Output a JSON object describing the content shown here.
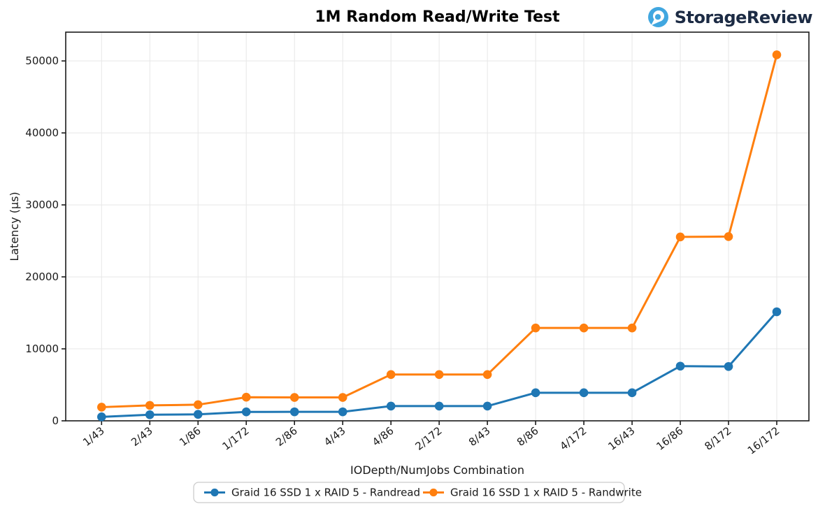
{
  "header": {
    "title": "1M Random Read/Write Test",
    "logo_text": "StorageReview",
    "logo_icon_color": "#41a7e0",
    "logo_text_color": "#1c2b44"
  },
  "chart_data": {
    "type": "line",
    "title": "1M Random Read/Write Test",
    "xlabel": "IODepth/NumJobs Combination",
    "ylabel": "Latency (µs)",
    "ylim": [
      0,
      54000
    ],
    "yticks": [
      0,
      10000,
      20000,
      30000,
      40000,
      50000
    ],
    "grid": true,
    "legend_position": "bottom-center",
    "categories": [
      "1/43",
      "2/43",
      "1/86",
      "1/172",
      "2/86",
      "4/43",
      "4/86",
      "2/172",
      "8/43",
      "8/86",
      "4/172",
      "16/43",
      "16/86",
      "8/172",
      "16/172"
    ],
    "series": [
      {
        "name": "Graid 16 SSD 1 x RAID 5 - Randread",
        "color": "#1f77b4",
        "values": [
          550,
          850,
          900,
          1240,
          1250,
          1250,
          2050,
          2050,
          2050,
          3900,
          3900,
          3900,
          7600,
          7550,
          15150
        ]
      },
      {
        "name": "Graid 16 SSD 1 x RAID 5 - Randwrite",
        "color": "#ff7f0e",
        "values": [
          1900,
          2150,
          2240,
          3280,
          3250,
          3250,
          6430,
          6430,
          6430,
          12900,
          12900,
          12900,
          25550,
          25600,
          50850
        ]
      }
    ],
    "colors": {
      "grid": "#e7e7e7",
      "spine": "#1a1a1a",
      "tick_text": "#1a1a1a"
    }
  }
}
